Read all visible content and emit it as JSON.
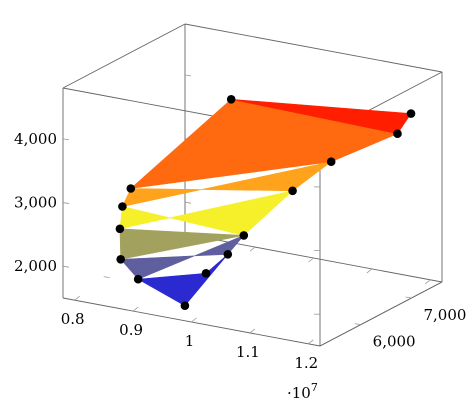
{
  "chart_data": {
    "type": "surface3d",
    "x_ticks": [
      {
        "value": 0.8,
        "label": "0.8"
      },
      {
        "value": 0.9,
        "label": "0.9"
      },
      {
        "value": 1.0,
        "label": "1"
      },
      {
        "value": 1.1,
        "label": "1.1"
      },
      {
        "value": 1.2,
        "label": "1.2"
      }
    ],
    "x_multiplier": "·10",
    "x_multiplier_exp": "7",
    "y_ticks": [
      {
        "value": 6000,
        "label": "6,000"
      },
      {
        "value": 7000,
        "label": "7,000"
      }
    ],
    "z_ticks": [
      {
        "value": 2000,
        "label": "2,000"
      },
      {
        "value": 3000,
        "label": "3,000"
      },
      {
        "value": 4000,
        "label": "4,000"
      }
    ],
    "xlim": [
      0.78,
      1.22
    ],
    "ylim": [
      5200,
      7600
    ],
    "zlim": [
      1500,
      4800
    ],
    "colormap": [
      "#1010d8",
      "#9e9e5a",
      "#f8f820",
      "#ffa010",
      "#ff5a00",
      "#ff0000"
    ],
    "points": [
      {
        "x": 0.98,
        "y": 5300,
        "z": 1680
      },
      {
        "x": 0.9,
        "y": 5300,
        "z": 1960
      },
      {
        "x": 0.87,
        "y": 5300,
        "z": 2220
      },
      {
        "x": 0.86,
        "y": 5400,
        "z": 2640
      },
      {
        "x": 0.86,
        "y": 5450,
        "z": 2970
      },
      {
        "x": 0.87,
        "y": 5500,
        "z": 3250
      },
      {
        "x": 0.92,
        "y": 6900,
        "z": 4150
      },
      {
        "x": 1.18,
        "y": 7450,
        "z": 4140
      },
      {
        "x": 1.17,
        "y": 7300,
        "z": 3870
      },
      {
        "x": 1.1,
        "y": 6800,
        "z": 3520
      },
      {
        "x": 1.06,
        "y": 6500,
        "z": 3120
      },
      {
        "x": 1.02,
        "y": 6000,
        "z": 2560
      },
      {
        "x": 1.01,
        "y": 5800,
        "z": 2330
      },
      {
        "x": 0.99,
        "y": 5600,
        "z": 2080
      }
    ],
    "bands": [
      {
        "color": "#2a2ad0",
        "points": [
          0,
          1,
          13,
          12
        ]
      },
      {
        "color": "#5f5fa0",
        "points": [
          1,
          2,
          12,
          11
        ]
      },
      {
        "color": "#a3a15e",
        "points": [
          2,
          3,
          11
        ]
      },
      {
        "color": "#f6f02a",
        "points": [
          3,
          4,
          11,
          10
        ]
      },
      {
        "color": "#ffa21c",
        "points": [
          4,
          5,
          10,
          9
        ]
      },
      {
        "color": "#ff6a10",
        "points": [
          5,
          6,
          8,
          9
        ]
      },
      {
        "color": "#ff1e00",
        "points": [
          6,
          7,
          8
        ]
      }
    ]
  }
}
